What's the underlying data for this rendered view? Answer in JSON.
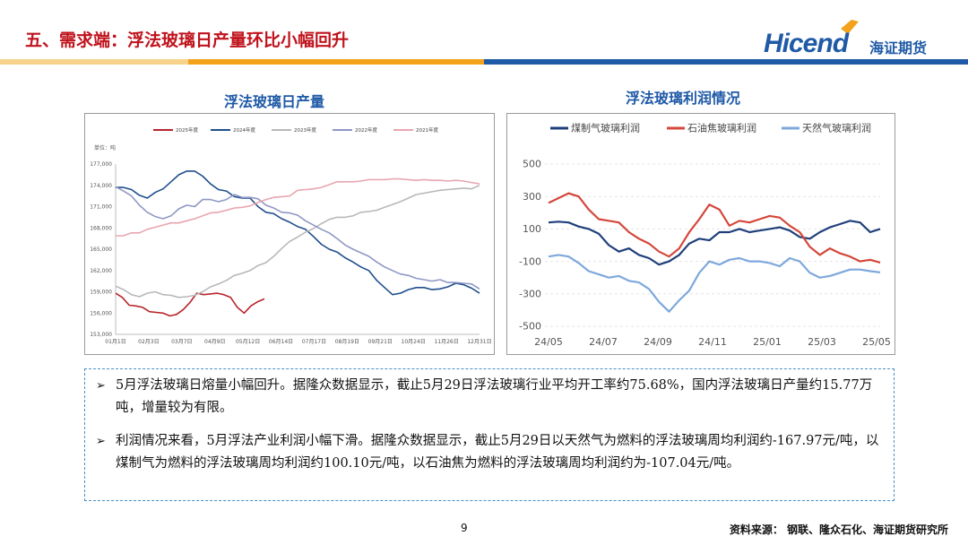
{
  "header": {
    "title": "五、需求端：浮法玻璃日产量环比小幅回升"
  },
  "logo": {
    "brand": "Hicend",
    "cn": "海证期货"
  },
  "colors": {
    "title_red": "#c0121c",
    "brand_blue": "#1f5aa6",
    "band_orange": "#f2a21b",
    "band_blue": "#1f5aa6"
  },
  "chart_data": [
    {
      "type": "line",
      "title": "浮法玻璃日产量",
      "unit_label": "单位：吨",
      "ylim": [
        153000,
        177000
      ],
      "yticks": [
        "177,000",
        "174,000",
        "171,000",
        "168,000",
        "165,000",
        "162,000",
        "159,000",
        "156,000",
        "153,000"
      ],
      "ytick_values": [
        177000,
        174000,
        171000,
        168000,
        165000,
        162000,
        159000,
        156000,
        153000
      ],
      "xticks": [
        "01月1日",
        "02月3日",
        "03月7日",
        "04月9日",
        "05月12日",
        "06月14日",
        "07月17日",
        "08月19日",
        "09月21日",
        "10月24日",
        "11月26日",
        "12月31日"
      ],
      "legend_position": "top",
      "series": [
        {
          "name": "2025年度",
          "color": "#b8252c",
          "values": [
            158800,
            158200,
            157100,
            157000,
            156800,
            156200,
            156100,
            156000,
            155600,
            155800,
            156500,
            157500,
            158800,
            158600,
            158700,
            158800,
            158600,
            158200,
            156800,
            156000,
            157000,
            157600,
            158000
          ]
        },
        {
          "name": "2024年度",
          "color": "#1f4e8c",
          "values": [
            173700,
            173700,
            173400,
            172600,
            172200,
            173000,
            173500,
            174500,
            175500,
            176000,
            176000,
            175300,
            174200,
            173400,
            173200,
            172400,
            172200,
            172200,
            171000,
            170200,
            170000,
            169300,
            168800,
            168200,
            167800,
            166800,
            165700,
            165000,
            164600,
            163800,
            163200,
            162500,
            162000,
            160600,
            159600,
            158600,
            158800,
            159300,
            159600,
            159600,
            159300,
            159400,
            159700,
            160200,
            160000,
            159500,
            158800
          ]
        },
        {
          "name": "2023年度",
          "color": "#b8b8b8",
          "values": [
            159800,
            159300,
            158600,
            158300,
            158800,
            159000,
            158600,
            158500,
            158200,
            158300,
            158500,
            159000,
            159700,
            160100,
            160600,
            161300,
            161600,
            162000,
            162700,
            163100,
            164000,
            165100,
            166100,
            166700,
            167400,
            167900,
            168600,
            169200,
            169500,
            169500,
            169700,
            170200,
            170300,
            170500,
            170900,
            171300,
            171700,
            172200,
            172700,
            172900,
            173100,
            173300,
            173400,
            173500,
            173600,
            173500,
            174000
          ]
        },
        {
          "name": "2022年度",
          "color": "#8f98c4",
          "values": [
            173800,
            173200,
            172500,
            171200,
            170200,
            169600,
            169300,
            169700,
            170700,
            171200,
            171000,
            172000,
            172000,
            171700,
            172000,
            172700,
            172300,
            172300,
            172100,
            171200,
            170800,
            170200,
            170100,
            169800,
            169000,
            168400,
            167800,
            167300,
            166500,
            165600,
            165000,
            164500,
            164000,
            163200,
            162500,
            162000,
            161500,
            161300,
            160900,
            160700,
            160500,
            160700,
            160300,
            160300,
            160200,
            160100,
            159400
          ]
        },
        {
          "name": "2021年度",
          "color": "#e8a6b0",
          "values": [
            166900,
            166900,
            167300,
            167300,
            167800,
            168100,
            168400,
            168700,
            168700,
            169000,
            169300,
            169700,
            170100,
            170200,
            170500,
            170800,
            170900,
            171100,
            171600,
            172000,
            172300,
            172400,
            172500,
            173300,
            173400,
            173500,
            173700,
            174100,
            174500,
            174500,
            174500,
            174600,
            174800,
            174800,
            174800,
            174900,
            174900,
            174800,
            174700,
            174800,
            174700,
            174700,
            174600,
            174700,
            174600,
            174400,
            174200
          ]
        }
      ]
    },
    {
      "type": "line",
      "title": "浮法玻璃利润情况",
      "ylim": [
        -500,
        500
      ],
      "yticks": [
        "500",
        "300",
        "100",
        "-100",
        "-300",
        "-500"
      ],
      "ytick_values": [
        500,
        300,
        100,
        -100,
        -300,
        -500
      ],
      "xticks": [
        "24/05",
        "24/07",
        "24/09",
        "24/11",
        "25/01",
        "25/03",
        "25/05"
      ],
      "legend_position": "top",
      "series": [
        {
          "name": "煤制气玻璃利润",
          "color": "#1f3f7a",
          "values": [
            140,
            145,
            140,
            115,
            100,
            70,
            0,
            -40,
            -20,
            -60,
            -80,
            -120,
            -100,
            -60,
            10,
            40,
            30,
            80,
            80,
            100,
            80,
            90,
            100,
            110,
            90,
            50,
            40,
            80,
            110,
            130,
            150,
            140,
            80,
            100
          ]
        },
        {
          "name": "石油焦玻璃利润",
          "color": "#d4473a",
          "values": [
            260,
            290,
            320,
            300,
            220,
            160,
            150,
            140,
            80,
            40,
            10,
            -40,
            -70,
            -20,
            80,
            160,
            250,
            220,
            120,
            150,
            140,
            160,
            180,
            170,
            120,
            80,
            -10,
            -60,
            -20,
            -50,
            -70,
            -100,
            -90,
            -107
          ]
        },
        {
          "name": "天然气玻璃利润",
          "color": "#7ea8dc",
          "values": [
            -70,
            -60,
            -70,
            -110,
            -160,
            -180,
            -200,
            -190,
            -220,
            -230,
            -270,
            -350,
            -410,
            -340,
            -280,
            -170,
            -100,
            -120,
            -90,
            -80,
            -100,
            -100,
            -110,
            -130,
            -80,
            -100,
            -170,
            -200,
            -190,
            -170,
            -150,
            -150,
            -160,
            -168
          ]
        }
      ]
    }
  ],
  "bullets": [
    {
      "marker": "➢",
      "text": "5月浮法玻璃日熔量小幅回升。据隆众数据显示，截止5月29日浮法玻璃行业平均开工率约75.68%，国内浮法玻璃日产量约15.77万吨，增量较为有限。"
    },
    {
      "marker": "➢",
      "text": "利润情况来看，5月浮法产业利润小幅下滑。据隆众数据显示，截止5月29日以天然气为燃料的浮法玻璃周均利润约-167.97元/吨，以煤制气为燃料的浮法玻璃周均利润约100.10元/吨，以石油焦为燃料的浮法玻璃周均利润约为-107.04元/吨。"
    }
  ],
  "footer": {
    "page": "9",
    "source": "资料来源：  钢联、隆众石化、海证期货研究所"
  }
}
